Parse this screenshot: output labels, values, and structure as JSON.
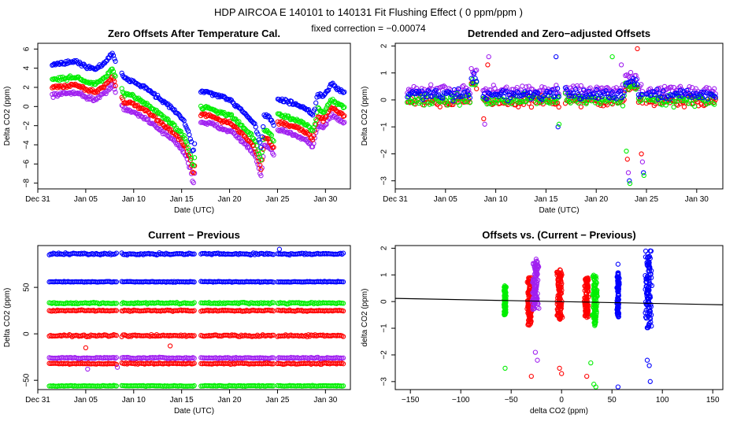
{
  "header": {
    "title": "HDP    AIRCOA E    140101 to 140131    Fit Flushing Effect ( 0 ppm/ppm )",
    "subtitle": "fixed correction = −0.00074"
  },
  "colors": {
    "blue": "#0000ff",
    "green": "#00ee00",
    "red": "#ff0000",
    "purple": "#a020f0",
    "fit": "#000000"
  },
  "chart_data": [
    {
      "id": "zero-offsets",
      "type": "scatter",
      "title": "Zero Offsets After Temperature Cal.",
      "xlabel": "Date (UTC)",
      "ylabel": "Delta CO2 (ppm)",
      "xlim": [
        0,
        32.6
      ],
      "ylim": [
        -8.6,
        6.6
      ],
      "xticks": [
        0,
        5,
        10,
        15,
        20,
        25,
        30
      ],
      "xticklabels": [
        "Dec 31",
        "Jan 05",
        "Jan 10",
        "Jan 15",
        "Jan 20",
        "Jan 25",
        "Jan 30"
      ],
      "yticks": [
        -8,
        -6,
        -4,
        -2,
        0,
        2,
        4,
        6
      ],
      "yticklabels": [
        "−8",
        "−6",
        "−4",
        "−2",
        "0",
        "2",
        "4",
        "6"
      ],
      "offsets": {
        "blue": 2.4,
        "green": 0.8,
        "red": 0,
        "purple": -0.8
      },
      "base_curve": [
        [
          1.5,
          2.0
        ],
        [
          2.5,
          2.1
        ],
        [
          4.0,
          2.3
        ],
        [
          5.0,
          1.8
        ],
        [
          6.0,
          1.5
        ],
        [
          7.0,
          2.2
        ],
        [
          7.8,
          3.2
        ],
        [
          8.1,
          2.2
        ],
        [
          9.0,
          0.5
        ],
        [
          10.0,
          0.2
        ],
        [
          11.0,
          -0.3
        ],
        [
          12.0,
          -1.0
        ],
        [
          13.0,
          -1.8
        ],
        [
          14.0,
          -2.6
        ],
        [
          15.0,
          -3.6
        ],
        [
          15.5,
          -4.5
        ],
        [
          16.0,
          -6.0
        ],
        [
          16.2,
          -7.4
        ],
        [
          17.0,
          -0.8
        ],
        [
          18.0,
          -1.0
        ],
        [
          19.0,
          -1.4
        ],
        [
          20.0,
          -1.7
        ],
        [
          21.0,
          -2.5
        ],
        [
          22.0,
          -3.5
        ],
        [
          22.6,
          -4.2
        ],
        [
          23.0,
          -5.5
        ],
        [
          23.3,
          -6.6
        ],
        [
          23.6,
          -3.3
        ],
        [
          24.1,
          -3.5
        ],
        [
          24.6,
          -4.3
        ],
        [
          25.0,
          -1.6
        ],
        [
          26.0,
          -1.9
        ],
        [
          27.0,
          -2.2
        ],
        [
          28.0,
          -2.7
        ],
        [
          28.7,
          -3.4
        ],
        [
          29.2,
          -1.1
        ],
        [
          29.8,
          -1.4
        ],
        [
          30.2,
          -0.8
        ],
        [
          30.6,
          0.0
        ],
        [
          31.2,
          -0.5
        ],
        [
          32.0,
          -0.9
        ]
      ],
      "legend": null
    },
    {
      "id": "detrended",
      "type": "scatter",
      "title": "Detrended and Zero−adjusted Offsets",
      "xlabel": "Date (UTC)",
      "ylabel": "Delta CO2 (ppm)",
      "xlim": [
        0,
        32.6
      ],
      "ylim": [
        -3.3,
        2.1
      ],
      "xticks": [
        0,
        5,
        10,
        15,
        20,
        25,
        30
      ],
      "xticklabels": [
        "Dec 31",
        "Jan 05",
        "Jan 10",
        "Jan 15",
        "Jan 20",
        "Jan 25",
        "Jan 30"
      ],
      "yticks": [
        -3,
        -2,
        -1,
        0,
        1,
        2
      ],
      "yticklabels": [
        "−3",
        "−2",
        "−1",
        "0",
        "1",
        "2"
      ],
      "offsets": {
        "blue": 0.2,
        "green": 0.0,
        "red": -0.05,
        "purple": 0.35
      },
      "outliers": [
        [
          23.0,
          -1.9
        ],
        [
          23.1,
          -2.2
        ],
        [
          23.2,
          -2.7
        ],
        [
          23.3,
          -3.0
        ],
        [
          23.35,
          -3.1
        ],
        [
          24.5,
          -2.0
        ],
        [
          24.6,
          -2.3
        ],
        [
          24.7,
          -2.7
        ],
        [
          24.75,
          -2.8
        ],
        [
          8.8,
          -0.7
        ],
        [
          8.9,
          -0.9
        ],
        [
          16.2,
          -1.0
        ],
        [
          16.3,
          -0.9
        ],
        [
          9.2,
          1.3
        ],
        [
          9.3,
          1.6
        ],
        [
          16.0,
          1.6
        ],
        [
          21.6,
          1.6
        ],
        [
          24.1,
          1.9
        ],
        [
          22.5,
          1.3
        ]
      ]
    },
    {
      "id": "current-previous",
      "type": "scatter",
      "title": "Current − Previous",
      "xlabel": "Date (UTC)",
      "ylabel": "Delta CO2 (ppm)",
      "xlim": [
        0,
        32.6
      ],
      "ylim": [
        -60,
        95
      ],
      "xticks": [
        0,
        5,
        10,
        15,
        20,
        25,
        30
      ],
      "xticklabels": [
        "Dec 31",
        "Jan 05",
        "Jan 10",
        "Jan 15",
        "Jan 20",
        "Jan 25",
        "Jan 30"
      ],
      "yticks": [
        -50,
        0,
        50
      ],
      "yticklabels": [
        "−50",
        "0",
        "50"
      ],
      "bands": [
        {
          "color": "blue",
          "level": 86,
          "spread": 1.5
        },
        {
          "color": "blue",
          "level": 56,
          "spread": 0.6
        },
        {
          "color": "green",
          "level": 33,
          "spread": 1.2
        },
        {
          "color": "red",
          "level": 25,
          "spread": 1.0
        },
        {
          "color": "red",
          "level": -2,
          "spread": 1.5
        },
        {
          "color": "purple",
          "level": -26,
          "spread": 1.0
        },
        {
          "color": "red",
          "level": -32,
          "spread": 1.0
        },
        {
          "color": "green",
          "level": -56,
          "spread": 0.6
        }
      ],
      "outliers": [
        [
          5.0,
          -15
        ],
        [
          13.8,
          -13
        ],
        [
          5.2,
          -38
        ],
        [
          8.3,
          -36
        ],
        [
          25.2,
          91
        ]
      ]
    },
    {
      "id": "offsets-vs-current",
      "type": "scatter",
      "title": "Offsets vs. (Current − Previous)",
      "xlabel": "delta CO2 (ppm)",
      "ylabel": "delta CO2 (ppm)",
      "xlim": [
        -165,
        160
      ],
      "ylim": [
        -3.3,
        2.1
      ],
      "xticks": [
        -150,
        -100,
        -50,
        0,
        50,
        100,
        150
      ],
      "xticklabels": [
        "−150",
        "−100",
        "−50",
        "0",
        "50",
        "100",
        "150"
      ],
      "yticks": [
        -3,
        -2,
        -1,
        0,
        1,
        2
      ],
      "yticklabels": [
        "−3",
        "−2",
        "−1",
        "0",
        "1",
        "2"
      ],
      "clusters": [
        {
          "color": "green",
          "x": -56,
          "spread": 1.5,
          "ymin": -0.5,
          "ymax": 0.6
        },
        {
          "color": "red",
          "x": -32,
          "spread": 3,
          "ymin": -0.9,
          "ymax": 0.9
        },
        {
          "color": "purple",
          "x": -26,
          "spread": 4,
          "ymin": -0.3,
          "ymax": 1.6
        },
        {
          "color": "red",
          "x": -2,
          "spread": 4,
          "ymin": -0.7,
          "ymax": 1.2
        },
        {
          "color": "red",
          "x": 25,
          "spread": 3,
          "ymin": -0.6,
          "ymax": 0.9
        },
        {
          "color": "green",
          "x": 33,
          "spread": 3,
          "ymin": -0.9,
          "ymax": 1.0
        },
        {
          "color": "blue",
          "x": 56,
          "spread": 1.5,
          "ymin": -0.6,
          "ymax": 1.1
        },
        {
          "color": "blue",
          "x": 86,
          "spread": 4,
          "ymin": -1.0,
          "ymax": 1.9
        }
      ],
      "outliers": [
        [
          -56,
          -2.5
        ],
        [
          -30,
          -2.8
        ],
        [
          -26,
          -1.9
        ],
        [
          -24,
          -2.2
        ],
        [
          -2,
          -2.5
        ],
        [
          0,
          -2.7
        ],
        [
          25,
          -2.8
        ],
        [
          32,
          -3.1
        ],
        [
          34,
          -3.2
        ],
        [
          29,
          -2.3
        ],
        [
          56,
          -3.2
        ],
        [
          56,
          1.4
        ],
        [
          85,
          -2.2
        ],
        [
          87,
          -2.4
        ],
        [
          88,
          -3.0
        ],
        [
          88,
          1.9
        ]
      ],
      "fit_line": {
        "x": [
          -165,
          160
        ],
        "y": [
          0.12,
          -0.12
        ]
      }
    }
  ]
}
